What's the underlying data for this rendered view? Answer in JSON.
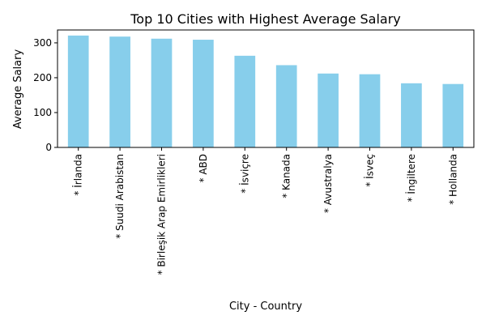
{
  "chart_data": {
    "type": "bar",
    "title": "Top 10 Cities with Highest Average Salary",
    "xlabel": "City - Country",
    "ylabel": "Average Salary",
    "categories": [
      "* İrlanda",
      "* Suudi Arabistan",
      "* Birleşik Arap Emirlikleri",
      "* ABD",
      "* İsviçre",
      "* Kanada",
      "* Avustralya",
      "* İsveç",
      "* İngiltere",
      "* Hollanda"
    ],
    "values": [
      321,
      318,
      312,
      309,
      263,
      236,
      212,
      210,
      184,
      182
    ],
    "ylim": [
      0,
      337
    ],
    "yticks": [
      0,
      100,
      200,
      300
    ],
    "bar_color": "#87ceeb",
    "grid": false,
    "legend": "none"
  }
}
